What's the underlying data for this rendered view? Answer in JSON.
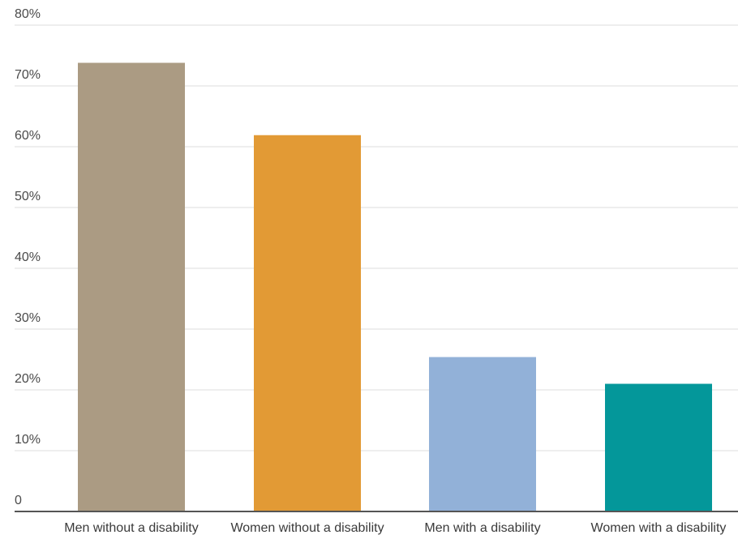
{
  "chart_data": {
    "type": "bar",
    "title": "",
    "xlabel": "",
    "ylabel": "",
    "ylim": [
      0,
      80
    ],
    "y_ticks": [
      0,
      10,
      20,
      30,
      40,
      50,
      60,
      70,
      80
    ],
    "y_tick_labels": [
      "0",
      "10%",
      "20%",
      "30%",
      "40%",
      "50%",
      "60%",
      "70%",
      "80%"
    ],
    "categories": [
      "Men without a disability",
      "Women without a disability",
      "Men with a disability",
      "Women with a disability"
    ],
    "values": [
      73.8,
      61.9,
      25.4,
      21.0
    ],
    "colors": [
      "#ab9b83",
      "#e29a35",
      "#92b1d8",
      "#04979a"
    ],
    "grid": true,
    "legend": "none"
  }
}
